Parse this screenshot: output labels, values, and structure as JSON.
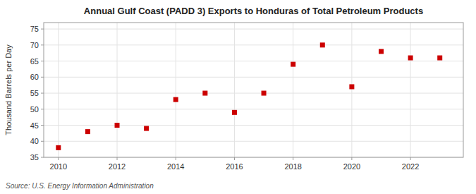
{
  "chart_data": {
    "type": "scatter",
    "title": "Annual Gulf Coast (PADD 3) Exports to Honduras of Total Petroleum Products",
    "ylabel": "Thousand Barrels per Day",
    "annotation": "Source: U.S. Energy Information Administration",
    "x": [
      2010,
      2011,
      2012,
      2013,
      2014,
      2015,
      2016,
      2017,
      2018,
      2019,
      2020,
      2021,
      2022,
      2023
    ],
    "values": [
      38,
      43,
      45,
      44,
      53,
      55,
      49,
      55,
      64,
      70,
      57,
      68,
      66,
      66
    ],
    "color": "#cc0000",
    "marker": "square",
    "xlim": [
      2009.5,
      2023.8
    ],
    "ylim": [
      35,
      77
    ],
    "xticks": [
      2010,
      2012,
      2014,
      2016,
      2018,
      2020,
      2022
    ],
    "yticks": [
      35,
      40,
      45,
      50,
      55,
      60,
      65,
      70,
      75
    ],
    "grid": true
  }
}
